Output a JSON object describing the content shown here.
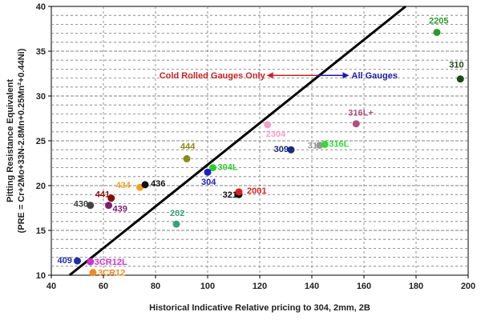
{
  "chart_data": {
    "type": "scatter",
    "xlabel": "Historical Indicative Relative pricing to 304, 2mm, 2B",
    "ylabel_line1": "Pitting Resistance  Equivalent",
    "ylabel_line2": "(PRE = Cr+2Mo+33N-2.8Mn+0.25Mn²+0.44Ni)",
    "xlim": [
      40,
      200
    ],
    "ylim": [
      10,
      40
    ],
    "x_ticks": [
      "40",
      "60",
      "80",
      "100",
      "120",
      "140",
      "160",
      "180",
      "200"
    ],
    "y_ticks": [
      "10",
      "15",
      "20",
      "25",
      "30",
      "35",
      "40"
    ],
    "grid": "horizontal dashed",
    "points": [
      {
        "label": "409",
        "x": 50,
        "y": 11.6,
        "color": "#1f2fa8"
      },
      {
        "label": "3CR12L",
        "x": 55,
        "y": 11.5,
        "color": "#cc33cc"
      },
      {
        "label": "3CR12",
        "x": 56,
        "y": 10.3,
        "color": "#f08a24"
      },
      {
        "label": "430",
        "x": 55,
        "y": 17.8,
        "color": "#444444"
      },
      {
        "label": "439",
        "x": 62,
        "y": 17.8,
        "color": "#7a1f6e"
      },
      {
        "label": "441",
        "x": 63,
        "y": 18.6,
        "color": "#8b0a0a"
      },
      {
        "label": "434",
        "x": 74,
        "y": 19.8,
        "color": "#f0a020"
      },
      {
        "label": "436",
        "x": 76,
        "y": 20.1,
        "color": "#111111"
      },
      {
        "label": "444",
        "x": 92,
        "y": 23.0,
        "color": "#8a8a1a"
      },
      {
        "label": "202",
        "x": 88,
        "y": 15.7,
        "color": "#3aa080"
      },
      {
        "label": "304L",
        "x": 102,
        "y": 22.0,
        "color": "#2ecc2e"
      },
      {
        "label": "304",
        "x": 100,
        "y": 21.5,
        "color": "#2020c0"
      },
      {
        "label": "321",
        "x": 112,
        "y": 19.0,
        "color": "#111111"
      },
      {
        "label": "2001",
        "x": 112,
        "y": 19.3,
        "color": "#e02020"
      },
      {
        "label": "2304",
        "x": 123,
        "y": 26.8,
        "color": "#f5a0c8"
      },
      {
        "label": "309",
        "x": 132,
        "y": 24.0,
        "color": "#1a2a7a"
      },
      {
        "label": "315",
        "x": 143,
        "y": 24.5,
        "color": "#999999"
      },
      {
        "label": "316L",
        "x": 145,
        "y": 24.6,
        "color": "#33dd33"
      },
      {
        "label": "316L+",
        "x": 157,
        "y": 26.9,
        "color": "#b05080"
      },
      {
        "label": "2205",
        "x": 188,
        "y": 37.1,
        "color": "#2a9a2a"
      },
      {
        "label": "310",
        "x": 197,
        "y": 31.9,
        "color": "#1a4a1a"
      }
    ],
    "trendline": {
      "x": [
        47,
        176
      ],
      "y": [
        10,
        40
      ],
      "color": "#000000"
    },
    "annotations": {
      "left_label": "Cold Rolled Gauges Only",
      "right_label": "All Gauges",
      "left_color": "#cc2222",
      "right_color": "#1a1aaa",
      "arrow_center": [
        142,
        32.3
      ],
      "arrow_left_end": [
        123,
        32.3
      ],
      "arrow_right_end": [
        154,
        32.3
      ]
    }
  }
}
